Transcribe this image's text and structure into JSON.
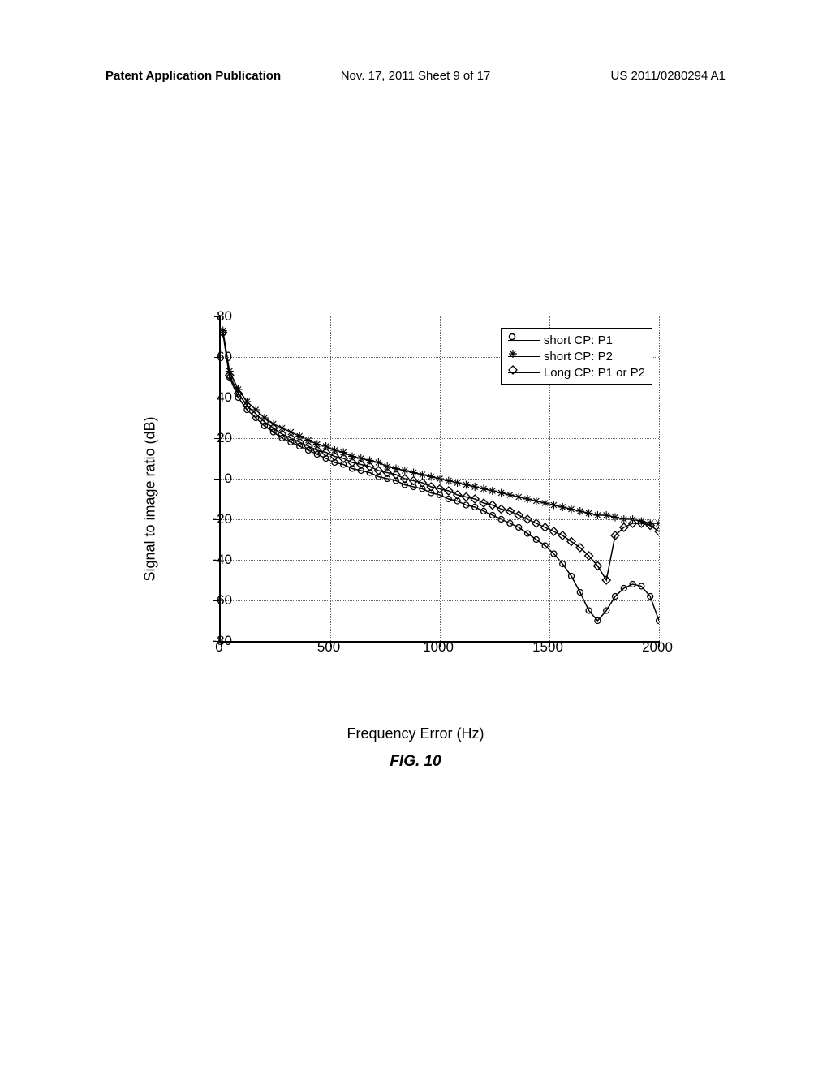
{
  "header": {
    "left": "Patent Application Publication",
    "center": "Nov. 17, 2011  Sheet 9 of 17",
    "right": "US 2011/0280294 A1"
  },
  "chart": {
    "type": "line",
    "xlabel": "Frequency Error (Hz)",
    "ylabel": "Signal to image ratio (dB)",
    "figure_label": "FIG. 10",
    "xlim": [
      0,
      2000
    ],
    "ylim": [
      -80,
      80
    ],
    "xticks": [
      0,
      500,
      1000,
      1500,
      2000
    ],
    "yticks": [
      -80,
      -60,
      -40,
      -20,
      0,
      20,
      40,
      60,
      80
    ],
    "grid_color": "#666666",
    "background_color": "#ffffff",
    "line_color": "#000000",
    "legend": {
      "items": [
        {
          "marker": "circle",
          "label": "short CP: P1"
        },
        {
          "marker": "star",
          "label": "short CP: P2"
        },
        {
          "marker": "diamond",
          "label": "Long CP: P1 or P2"
        }
      ]
    },
    "series": [
      {
        "name": "short CP: P1",
        "marker": "circle",
        "x": [
          10,
          40,
          80,
          120,
          160,
          200,
          240,
          280,
          320,
          360,
          400,
          440,
          480,
          520,
          560,
          600,
          640,
          680,
          720,
          760,
          800,
          840,
          880,
          920,
          960,
          1000,
          1040,
          1080,
          1120,
          1160,
          1200,
          1240,
          1280,
          1320,
          1360,
          1400,
          1440,
          1480,
          1520,
          1560,
          1600,
          1640,
          1680,
          1720,
          1760,
          1800,
          1840,
          1880,
          1920,
          1960,
          2000
        ],
        "y": [
          72,
          50,
          40,
          34,
          30,
          26,
          23,
          20,
          18,
          16,
          14,
          12,
          10,
          8,
          7,
          5,
          4,
          3,
          1,
          0,
          -1,
          -3,
          -4,
          -5,
          -7,
          -8,
          -10,
          -11,
          -13,
          -14,
          -16,
          -18,
          -20,
          -22,
          -24,
          -27,
          -30,
          -33,
          -37,
          -42,
          -48,
          -56,
          -65,
          -70,
          -65,
          -58,
          -54,
          -52,
          -53,
          -58,
          -70
        ]
      },
      {
        "name": "short CP: P2",
        "marker": "star",
        "x": [
          10,
          40,
          80,
          120,
          160,
          200,
          240,
          280,
          320,
          360,
          400,
          440,
          480,
          520,
          560,
          600,
          640,
          680,
          720,
          760,
          800,
          840,
          880,
          920,
          960,
          1000,
          1040,
          1080,
          1120,
          1160,
          1200,
          1240,
          1280,
          1320,
          1360,
          1400,
          1440,
          1480,
          1520,
          1560,
          1600,
          1640,
          1680,
          1720,
          1760,
          1800,
          1840,
          1880,
          1920,
          1960,
          2000
        ],
        "y": [
          73,
          53,
          44,
          38,
          34,
          30,
          27,
          25,
          23,
          21,
          19,
          17,
          16,
          14,
          13,
          11,
          10,
          9,
          8,
          6,
          5,
          4,
          3,
          2,
          1,
          0,
          -1,
          -2,
          -3,
          -4,
          -5,
          -6,
          -7,
          -8,
          -9,
          -10,
          -11,
          -12,
          -13,
          -14,
          -15,
          -16,
          -17,
          -18,
          -18,
          -19,
          -20,
          -20,
          -21,
          -22,
          -22
        ]
      },
      {
        "name": "Long CP: P1 or P2",
        "marker": "diamond",
        "x": [
          10,
          40,
          80,
          120,
          160,
          200,
          240,
          280,
          320,
          360,
          400,
          440,
          480,
          520,
          560,
          600,
          640,
          680,
          720,
          760,
          800,
          840,
          880,
          920,
          960,
          1000,
          1040,
          1080,
          1120,
          1160,
          1200,
          1240,
          1280,
          1320,
          1360,
          1400,
          1440,
          1480,
          1520,
          1560,
          1600,
          1640,
          1680,
          1720,
          1760,
          1800,
          1840,
          1880,
          1920,
          1960,
          2000
        ],
        "y": [
          72,
          51,
          42,
          36,
          32,
          28,
          25,
          22,
          20,
          18,
          16,
          14,
          13,
          11,
          10,
          8,
          7,
          6,
          4,
          3,
          2,
          0,
          -1,
          -2,
          -4,
          -5,
          -6,
          -8,
          -9,
          -10,
          -12,
          -13,
          -15,
          -16,
          -18,
          -20,
          -22,
          -24,
          -26,
          -28,
          -31,
          -34,
          -38,
          -43,
          -50,
          -28,
          -24,
          -22,
          -22,
          -23,
          -26
        ]
      }
    ]
  }
}
